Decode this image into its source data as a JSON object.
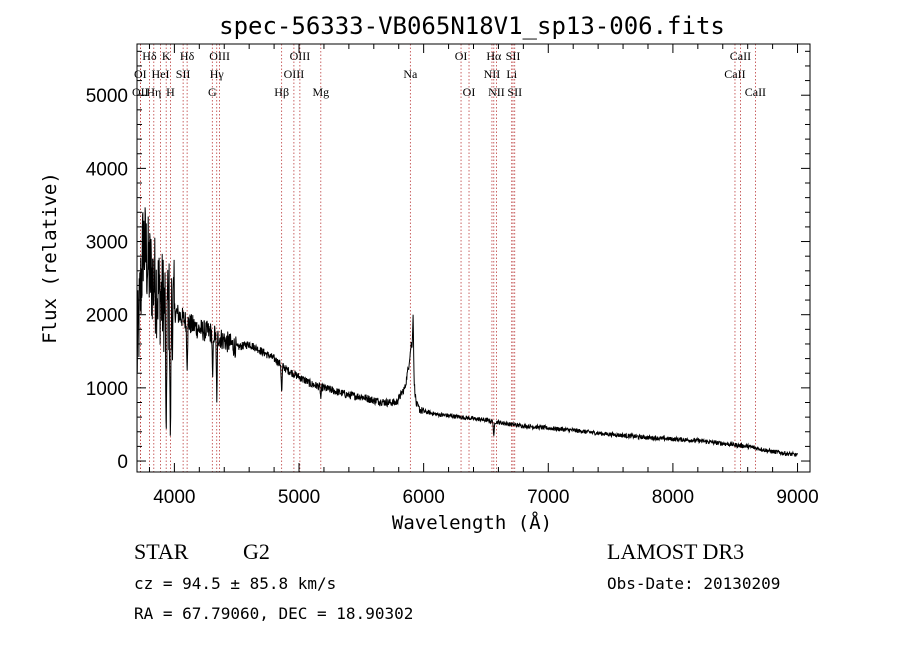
{
  "chart_data": {
    "type": "line",
    "title": "spec-56333-VB065N18V1_sp13-006.fits",
    "xlabel": "Wavelength (Å)",
    "ylabel": "Flux (relative)",
    "xlim": [
      3700,
      9100
    ],
    "ylim": [
      -150,
      5700
    ],
    "xticks": [
      4000,
      5000,
      6000,
      7000,
      8000,
      9000
    ],
    "yticks": [
      0,
      1000,
      2000,
      3000,
      4000,
      5000
    ],
    "grid": false,
    "line_color": "#000000",
    "marker_color": "#b22222",
    "spectrum_anchors": {
      "x": [
        3700,
        3750,
        3800,
        3850,
        3900,
        3950,
        4000,
        4100,
        4200,
        4300,
        4400,
        4500,
        4600,
        4700,
        4800,
        4900,
        5000,
        5100,
        5200,
        5300,
        5400,
        5500,
        5600,
        5700,
        5780,
        5850,
        5880,
        5900,
        5910,
        5920,
        5940,
        5960,
        5980,
        6000,
        6050,
        6100,
        6200,
        6300,
        6400,
        6500,
        6600,
        6700,
        6800,
        7000,
        7200,
        7400,
        7600,
        7800,
        8000,
        8200,
        8400,
        8600,
        8800,
        9000
      ],
      "y": [
        1400,
        3000,
        2600,
        2400,
        2200,
        2100,
        2050,
        1900,
        1800,
        1750,
        1650,
        1550,
        1600,
        1500,
        1400,
        1250,
        1150,
        1050,
        1000,
        950,
        900,
        880,
        830,
        800,
        800,
        1000,
        1300,
        1600,
        1500,
        1150,
        780,
        720,
        690,
        680,
        660,
        640,
        620,
        600,
        580,
        560,
        530,
        500,
        480,
        450,
        420,
        380,
        350,
        320,
        300,
        280,
        240,
        200,
        130,
        80
      ]
    },
    "spectrum_features": [
      {
        "x": 3934,
        "y": 100
      },
      {
        "x": 3968,
        "y": 200
      },
      {
        "x": 4102,
        "y": 1200
      },
      {
        "x": 4307,
        "y": 1100
      },
      {
        "x": 4340,
        "y": 800
      },
      {
        "x": 4861,
        "y": 900
      },
      {
        "x": 5175,
        "y": 850
      },
      {
        "x": 5915,
        "y": 2000
      },
      {
        "x": 6563,
        "y": 330
      }
    ],
    "reference_lines": [
      {
        "label": "Hδ",
        "x": 3800,
        "row": 0
      },
      {
        "label": "K",
        "x": 3934,
        "row": 0
      },
      {
        "label": "Hδ",
        "x": 4102,
        "row": 0
      },
      {
        "label": "OIII",
        "x": 4363,
        "row": 0
      },
      {
        "label": "OIII",
        "x": 5007,
        "row": 0
      },
      {
        "label": "OI",
        "x": 6300,
        "row": 0
      },
      {
        "label": "Hα",
        "x": 6563,
        "row": 0
      },
      {
        "label": "SII",
        "x": 6717,
        "row": 0
      },
      {
        "label": "CaII",
        "x": 8542,
        "row": 0
      },
      {
        "label": "OI",
        "x": 3727,
        "row": 1
      },
      {
        "label": "HeI",
        "x": 3889,
        "row": 1
      },
      {
        "label": "SII",
        "x": 4070,
        "row": 1
      },
      {
        "label": "Hγ",
        "x": 4340,
        "row": 1
      },
      {
        "label": "OIII",
        "x": 4959,
        "row": 1
      },
      {
        "label": "Na",
        "x": 5893,
        "row": 1
      },
      {
        "label": "NII",
        "x": 6548,
        "row": 1
      },
      {
        "label": "Li",
        "x": 6707,
        "row": 1
      },
      {
        "label": "CaII",
        "x": 8498,
        "row": 1
      },
      {
        "label": "OII",
        "x": 3727,
        "row": 2
      },
      {
        "label": "Hη",
        "x": 3835,
        "row": 2
      },
      {
        "label": "H",
        "x": 3968,
        "row": 2
      },
      {
        "label": "G",
        "x": 4304,
        "row": 2
      },
      {
        "label": "Hβ",
        "x": 4861,
        "row": 2
      },
      {
        "label": "Mg",
        "x": 5175,
        "row": 2
      },
      {
        "label": "OI",
        "x": 6364,
        "row": 2
      },
      {
        "label": "NII",
        "x": 6584,
        "row": 2
      },
      {
        "label": "SII",
        "x": 6731,
        "row": 2
      },
      {
        "label": "CaII",
        "x": 8662,
        "row": 2
      }
    ]
  },
  "info": {
    "class_label": "STAR",
    "subclass": "G2",
    "velocity": "cz = 94.5 ± 85.8 km/s",
    "coords": "RA =  67.79060, DEC =  18.90302",
    "survey": "LAMOST DR3",
    "obs_date": "Obs-Date: 20130209"
  }
}
